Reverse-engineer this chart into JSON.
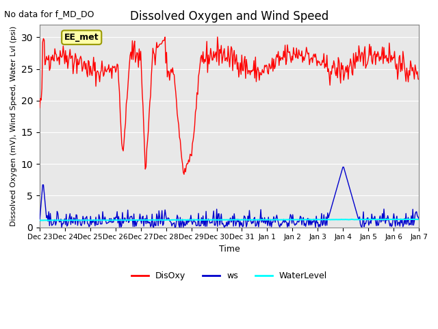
{
  "title": "Dissolved Oxygen and Wind Speed",
  "subtitle": "No data for f_MD_DO",
  "xlabel": "Time",
  "ylabel": "Dissolved Oxygen (mV), Wind Speed, Water Lvl (psi)",
  "ylim": [
    0,
    32
  ],
  "yticks": [
    0,
    5,
    10,
    15,
    20,
    25,
    30
  ],
  "annotation_box": "EE_met",
  "background_color": "#e8e8e8",
  "legend_labels": [
    "DisOxy",
    "ws",
    "WaterLevel"
  ],
  "disoxy_color": "red",
  "ws_color": "#0000cc",
  "water_level_color": "cyan",
  "n_points": 500,
  "n_days": 15
}
